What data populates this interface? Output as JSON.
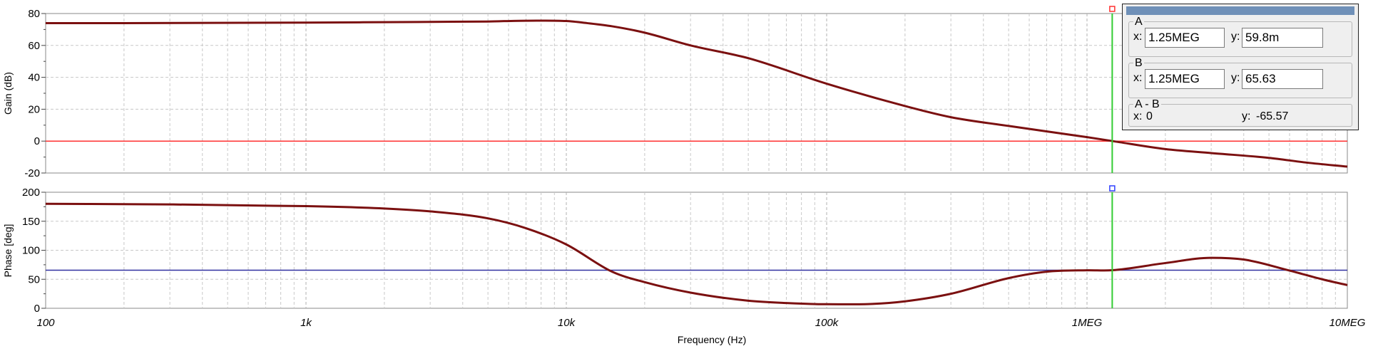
{
  "chart_data": [
    {
      "type": "line",
      "ylabel": "Gain (dB)",
      "xscale": "log",
      "xlim": [
        100,
        10000000
      ],
      "ylim": [
        -20,
        80
      ],
      "yticks": [
        "80",
        "60",
        "40",
        "20",
        "0",
        "-20"
      ],
      "grid": true,
      "reference_line_y": 0,
      "reference_color": "#ff3030",
      "trace_color": "#7b1010",
      "x": [
        100,
        200,
        1000,
        2000,
        5000,
        7000,
        10000,
        12000,
        15000,
        20000,
        30000,
        50000,
        100000,
        200000,
        300000,
        500000,
        1000000,
        1250000,
        2000000,
        3000000,
        5000000,
        7000000,
        10000000
      ],
      "y": [
        74,
        74,
        74.3,
        74.6,
        75,
        75.5,
        75.3,
        74,
        72,
        68,
        60,
        52,
        36,
        22,
        15,
        9.5,
        2.5,
        0.06,
        -5,
        -7.5,
        -10.5,
        -13.5,
        -16
      ]
    },
    {
      "type": "line",
      "ylabel": "Phase [deg]",
      "xlabel": "Frequency (Hz)",
      "xscale": "log",
      "xlim": [
        100,
        10000000
      ],
      "ylim": [
        0,
        200
      ],
      "yticks": [
        "200",
        "150",
        "100",
        "50",
        "0"
      ],
      "xticks": [
        "100",
        "1k",
        "10k",
        "100k",
        "1MEG",
        "10MEG"
      ],
      "grid": true,
      "reference_line_y": 65.63,
      "reference_color": "#3030a0",
      "trace_color": "#7b1010",
      "x": [
        100,
        300,
        1000,
        2000,
        3000,
        5000,
        7000,
        10000,
        15000,
        20000,
        30000,
        50000,
        70000,
        100000,
        150000,
        200000,
        300000,
        500000,
        700000,
        1000000,
        1250000,
        2000000,
        3000000,
        4000000,
        6000000,
        8000000,
        10000000
      ],
      "y": [
        180,
        179,
        176,
        172,
        167,
        155,
        138,
        110,
        63,
        45,
        27,
        13,
        9,
        7,
        7.5,
        12,
        25,
        52,
        63,
        65.5,
        65.6,
        78,
        87,
        84,
        65,
        50,
        40
      ]
    }
  ],
  "cursor_panel": {
    "A": {
      "title": "A",
      "x_label": "x:",
      "x_value": "1.25MEG",
      "y_label": "y:",
      "y_value": "59.8m"
    },
    "B": {
      "title": "B",
      "x_label": "x:",
      "x_value": "1.25MEG",
      "y_label": "y:",
      "y_value": "65.63"
    },
    "AB": {
      "title": "A - B",
      "x_label": "x:",
      "x_value": "0",
      "y_label": "y:",
      "y_value": "-65.57"
    }
  },
  "cursor": {
    "x": 1250000,
    "color": "#33cc33",
    "marker_a_color": "#ff3030",
    "marker_b_color": "#3040ff"
  }
}
